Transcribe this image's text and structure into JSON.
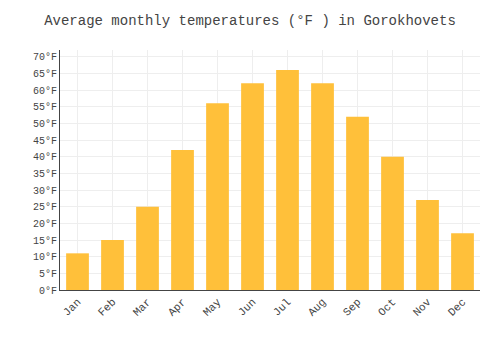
{
  "chart_data": {
    "type": "bar",
    "title": "Average monthly temperatures (°F ) in Gorokhovets",
    "categories": [
      "Jan",
      "Feb",
      "Mar",
      "Apr",
      "May",
      "Jun",
      "Jul",
      "Aug",
      "Sep",
      "Oct",
      "Nov",
      "Dec"
    ],
    "values": [
      11,
      15,
      25,
      42,
      56,
      62,
      66,
      62,
      52,
      40,
      27,
      17
    ],
    "color": "#FFC03A",
    "ylim": [
      0,
      72
    ],
    "yticks": [
      {
        "value": 0,
        "label": "0°F"
      },
      {
        "value": 5,
        "label": "5°F"
      },
      {
        "value": 10,
        "label": "10°F"
      },
      {
        "value": 15,
        "label": "15°F"
      },
      {
        "value": 20,
        "label": "20°F"
      },
      {
        "value": 25,
        "label": "25°F"
      },
      {
        "value": 30,
        "label": "30°F"
      },
      {
        "value": 35,
        "label": "35°F"
      },
      {
        "value": 40,
        "label": "40°F"
      },
      {
        "value": 45,
        "label": "45°F"
      },
      {
        "value": 50,
        "label": "50°F"
      },
      {
        "value": 55,
        "label": "55°F"
      },
      {
        "value": 60,
        "label": "60°F"
      },
      {
        "value": 65,
        "label": "65°F"
      },
      {
        "value": 70,
        "label": "70°F"
      }
    ],
    "grid": true
  }
}
